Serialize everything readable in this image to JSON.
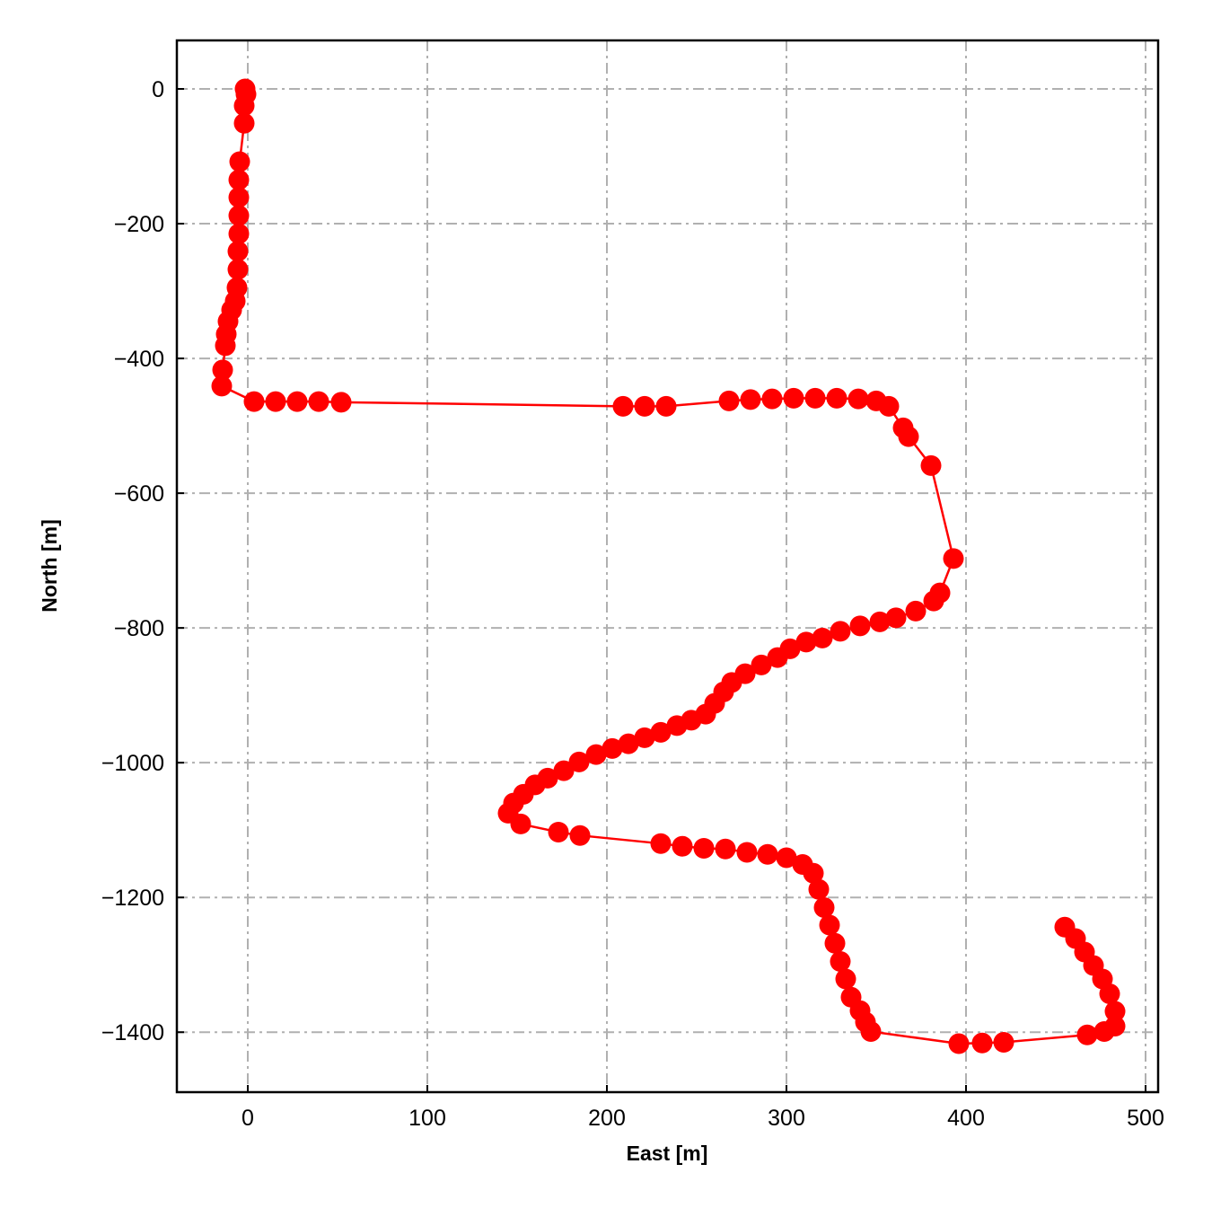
{
  "chart_data": {
    "type": "line",
    "xlabel": "East [m]",
    "ylabel": "North [m]",
    "color": "#ff0000",
    "markers": true,
    "grid": true,
    "xlim": [
      -39.5,
      507
    ],
    "ylim": [
      -1489,
      72
    ],
    "xticks": [
      0,
      100,
      200,
      300,
      400,
      500
    ],
    "yticks": [
      0,
      {
        "value": -200,
        "label": "−200"
      },
      {
        "value": -400,
        "label": "−400"
      },
      {
        "value": -600,
        "label": "−600"
      },
      {
        "value": -800,
        "label": "−800"
      },
      {
        "value": -1000,
        "label": "−1000"
      },
      {
        "value": -1200,
        "label": "−1200"
      },
      {
        "value": -1400,
        "label": "−1400"
      }
    ],
    "x": [
      -1.5,
      -1,
      -2,
      -2,
      -4.5,
      -5,
      -5,
      -5,
      -5,
      -5.5,
      -5.5,
      -6,
      -7,
      -9,
      -11,
      -12,
      -12.5,
      -14,
      -14.5,
      3.5,
      15.5,
      27.5,
      39.5,
      52,
      209,
      221,
      233,
      268,
      280,
      292,
      304,
      316,
      328,
      340,
      350,
      357,
      365,
      368,
      380.5,
      393,
      385.5,
      382,
      372,
      361,
      352,
      341,
      330,
      320,
      311,
      302,
      295,
      286,
      277,
      269.5,
      265,
      260,
      255,
      247,
      239,
      230,
      221,
      212,
      203,
      194,
      184.5,
      176,
      167,
      160,
      153.5,
      148,
      145,
      152,
      173,
      185,
      230,
      242,
      254,
      266,
      278,
      289.5,
      300,
      309,
      315,
      318,
      321,
      324,
      327,
      330,
      333,
      336,
      341,
      344,
      347,
      396,
      409,
      421,
      467.5,
      477,
      483,
      483,
      480,
      476,
      471,
      466,
      461,
      455
    ],
    "values": [
      0,
      -8,
      -25,
      -51,
      -108,
      -135,
      -161,
      -188,
      -215,
      -241,
      -268,
      -295,
      -315,
      -328,
      -345,
      -364,
      -381,
      -417,
      -441,
      -464,
      -464,
      -464,
      -464,
      -465,
      -471,
      -471,
      -471,
      -463,
      -461,
      -460,
      -459,
      -459,
      -459,
      -460,
      -463,
      -471,
      -503,
      -516,
      -559,
      -697,
      -748,
      -760,
      -775,
      -785,
      -791,
      -797,
      -805,
      -815,
      -821,
      -831,
      -844,
      -855,
      -868,
      -881,
      -895,
      -912,
      -928,
      -937,
      -945,
      -955,
      -963,
      -972,
      -979,
      -988,
      -999,
      -1012,
      -1023,
      -1033,
      -1047,
      -1060,
      -1075,
      -1091,
      -1103,
      -1108,
      -1120,
      -1124,
      -1127,
      -1128,
      -1133,
      -1136,
      -1141,
      -1151,
      -1164,
      -1188,
      -1215,
      -1241,
      -1268,
      -1295,
      -1321,
      -1348,
      -1368,
      -1385,
      -1399,
      -1417,
      -1416,
      -1415,
      -1404,
      -1399,
      -1391,
      -1369,
      -1343,
      -1321,
      -1301,
      -1281,
      -1261,
      -1244
    ]
  }
}
